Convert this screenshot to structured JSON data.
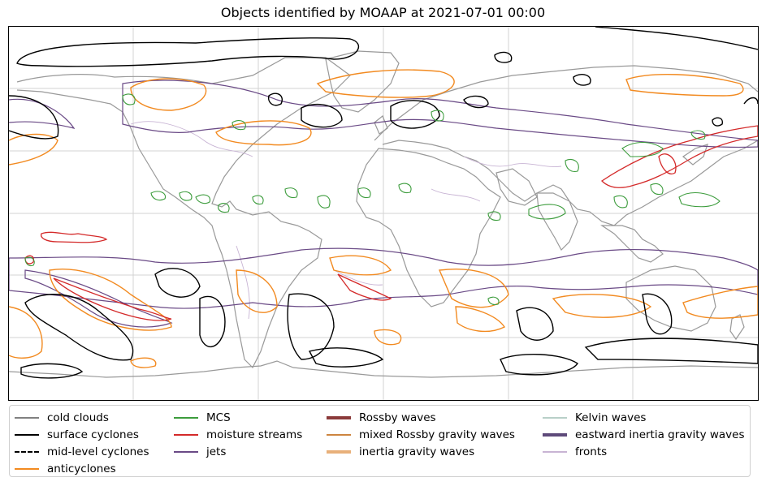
{
  "title": "Objects identified by MOAAP at 2021-07-01 00:00",
  "map": {
    "projection": "PlateCarree",
    "extent": "global",
    "gridlines": true,
    "coastline_color": "#999999",
    "grid_color": "#cccccc"
  },
  "legend": {
    "columns": [
      [
        {
          "label": "cold clouds",
          "color": "#808080",
          "style": "solid",
          "weight": "normal"
        },
        {
          "label": "surface cyclones",
          "color": "#000000",
          "style": "solid",
          "weight": "normal"
        },
        {
          "label": "mid-level cyclones",
          "color": "#000000",
          "style": "dashed",
          "weight": "normal"
        },
        {
          "label": "anticyclones",
          "color": "#f28a20",
          "style": "solid",
          "weight": "normal"
        }
      ],
      [
        {
          "label": "MCS",
          "color": "#3c9c3c",
          "style": "solid",
          "weight": "normal"
        },
        {
          "label": "moisture streams",
          "color": "#d42a2a",
          "style": "solid",
          "weight": "normal"
        },
        {
          "label": "jets",
          "color": "#6a4a86",
          "style": "solid",
          "weight": "normal"
        }
      ],
      [
        {
          "label": "Rossby waves",
          "color": "#8b3a3a",
          "style": "solid",
          "weight": "thick"
        },
        {
          "label": "mixed Rossby gravity waves",
          "color": "#cd853f",
          "style": "solid",
          "weight": "normal"
        },
        {
          "label": "inertia gravity waves",
          "color": "#e8b07a",
          "style": "solid",
          "weight": "thick"
        }
      ],
      [
        {
          "label": "Kelvin waves",
          "color": "#b8d0c8",
          "style": "solid",
          "weight": "normal"
        },
        {
          "label": "eastward inertia gravity waves",
          "color": "#5e4a7a",
          "style": "solid",
          "weight": "thick"
        },
        {
          "label": "fronts",
          "color": "#c8b4d4",
          "style": "solid",
          "weight": "normal"
        }
      ]
    ]
  }
}
